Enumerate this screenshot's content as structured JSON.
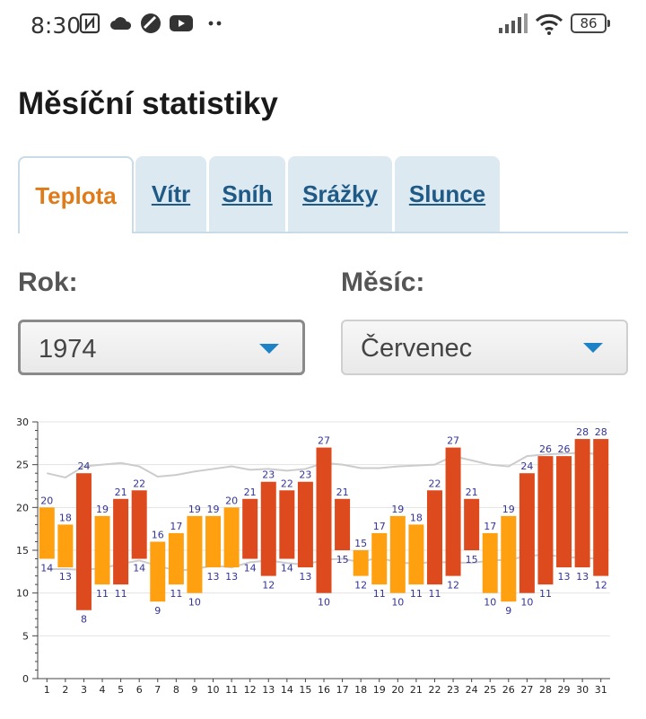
{
  "status_bar": {
    "time": "8:30",
    "left_icons": [
      "nfc-icon",
      "cloud-icon",
      "no-entry-icon",
      "youtube-icon",
      "more-dots-icon"
    ],
    "right_icons": [
      "signal-icon",
      "wifi-icon",
      "battery-icon"
    ],
    "battery": "86"
  },
  "page": {
    "title": "Měsíční statistiky"
  },
  "tabs": [
    {
      "label": "Teplota",
      "active": true
    },
    {
      "label": "Vítr",
      "active": false
    },
    {
      "label": "Sníh",
      "active": false
    },
    {
      "label": "Srážky",
      "active": false
    },
    {
      "label": "Slunce",
      "active": false
    }
  ],
  "filters": {
    "year_label": "Rok:",
    "year_value": "1974",
    "month_label": "Měsíc:",
    "month_value": "Červenec"
  },
  "colors": {
    "accent_orange": "#e07b1a",
    "tab_link": "#1f5a86",
    "tab_bg": "#dce9f1",
    "bar_mild": "#ffa010",
    "bar_warm": "#dd4a1e",
    "label_blue": "#333399",
    "avg_line": "#cccccc"
  },
  "chart_data": {
    "type": "bar",
    "subtype": "floating-range",
    "categories": [
      "1",
      "2",
      "3",
      "4",
      "5",
      "6",
      "7",
      "8",
      "9",
      "10",
      "11",
      "12",
      "13",
      "14",
      "15",
      "16",
      "17",
      "18",
      "19",
      "20",
      "21",
      "22",
      "23",
      "24",
      "25",
      "26",
      "27",
      "28",
      "29",
      "30",
      "31"
    ],
    "ylim": [
      0,
      30
    ],
    "yticks": [
      0,
      5,
      10,
      15,
      20,
      25,
      30
    ],
    "grid": true,
    "series": [
      {
        "role": "max",
        "values": [
          20,
          18,
          24,
          19,
          21,
          22,
          16,
          17,
          19,
          19,
          20,
          21,
          23,
          22,
          23,
          27,
          21,
          15,
          17,
          19,
          18,
          22,
          27,
          21,
          17,
          19,
          24,
          26,
          26,
          28,
          28
        ]
      },
      {
        "role": "min",
        "values": [
          14,
          13,
          8,
          11,
          11,
          14,
          9,
          11,
          10,
          13,
          13,
          14,
          12,
          14,
          13,
          10,
          15,
          12,
          11,
          10,
          11,
          11,
          12,
          15,
          10,
          9,
          10,
          11,
          13,
          13,
          12
        ]
      }
    ],
    "bar_color": [
      "mild",
      "mild",
      "warm",
      "mild",
      "warm",
      "warm",
      "mild",
      "mild",
      "mild",
      "mild",
      "mild",
      "warm",
      "warm",
      "warm",
      "warm",
      "warm",
      "warm",
      "mild",
      "mild",
      "mild",
      "mild",
      "warm",
      "warm",
      "warm",
      "mild",
      "mild",
      "warm",
      "warm",
      "warm",
      "warm",
      "warm"
    ],
    "avg_lines": [
      {
        "role": "avg-max",
        "values": [
          24,
          23.5,
          24.8,
          25,
          25.2,
          24.8,
          23.6,
          23.8,
          24.2,
          24.5,
          24.8,
          24.4,
          24.5,
          24.3,
          24.5,
          25.2,
          25,
          24.6,
          24.6,
          24.8,
          24.9,
          25,
          26,
          25.5,
          25,
          24.8,
          26,
          26.2,
          26.3,
          26.4,
          26.2
        ]
      },
      {
        "role": "avg-min",
        "values": [
          12.8,
          12.8,
          12.7,
          12.9,
          13.4,
          13.8,
          13.2,
          12.6,
          12.8,
          13.2,
          13,
          13.6,
          13.8,
          13.5,
          13.3,
          13.9,
          14,
          13.6,
          14.2,
          13.5,
          13.5,
          13.6,
          13.6,
          13.5,
          13.8,
          13.9,
          14.3,
          14.5,
          14.2,
          14.1,
          14
        ]
      }
    ]
  }
}
